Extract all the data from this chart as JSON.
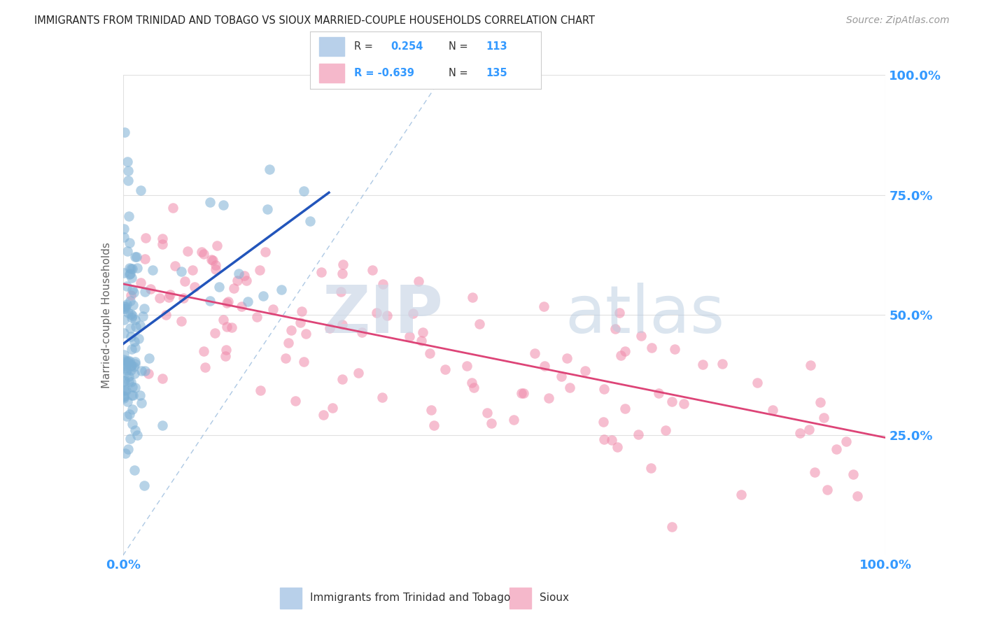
{
  "title": "IMMIGRANTS FROM TRINIDAD AND TOBAGO VS SIOUX MARRIED-COUPLE HOUSEHOLDS CORRELATION CHART",
  "source": "Source: ZipAtlas.com",
  "ylabel": "Married-couple Households",
  "legend_blue_label": "R =  0.254   N = 113",
  "legend_pink_label": "R = -0.639   N = 135",
  "legend_label_blue": "Immigrants from Trinidad and Tobago",
  "legend_label_pink": "Sioux",
  "blue_fill": "#b8d0ea",
  "pink_fill": "#f5b8cb",
  "blue_scatter_color": "#7db0d5",
  "pink_scatter_color": "#f08aaa",
  "blue_line_color": "#2255bb",
  "pink_line_color": "#dd4477",
  "diagonal_color": "#99bbdd",
  "watermark_zip": "ZIP",
  "watermark_atlas": "atlas",
  "background_color": "#ffffff",
  "grid_color": "#e0e0e0",
  "title_color": "#222222",
  "tick_color": "#3399ff",
  "ylabel_color": "#666666"
}
